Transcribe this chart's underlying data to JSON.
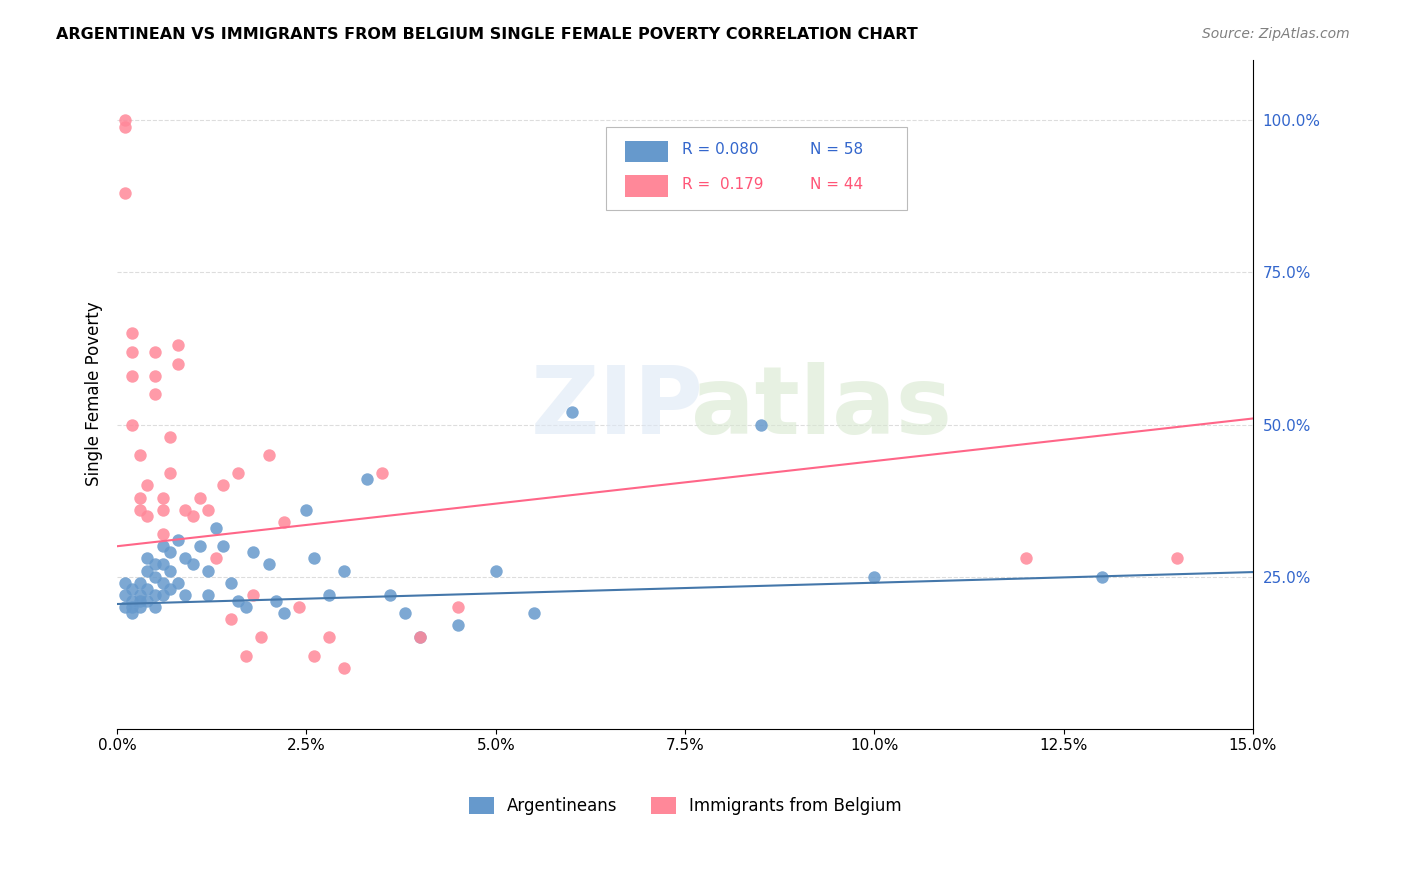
{
  "title": "ARGENTINEAN VS IMMIGRANTS FROM BELGIUM SINGLE FEMALE POVERTY CORRELATION CHART",
  "source": "Source: ZipAtlas.com",
  "ylabel": "Single Female Poverty",
  "right_yticks": [
    "100.0%",
    "75.0%",
    "50.0%",
    "25.0%"
  ],
  "right_ytick_vals": [
    1.0,
    0.75,
    0.5,
    0.25
  ],
  "color_blue": "#6699CC",
  "color_pink": "#FF8899",
  "color_line_blue": "#4477AA",
  "color_line_pink": "#FF6688",
  "color_label_blue": "#3366CC",
  "color_label_pink": "#FF5577",
  "argentineans_x": [
    0.001,
    0.001,
    0.001,
    0.002,
    0.002,
    0.002,
    0.002,
    0.003,
    0.003,
    0.003,
    0.003,
    0.004,
    0.004,
    0.004,
    0.004,
    0.005,
    0.005,
    0.005,
    0.005,
    0.006,
    0.006,
    0.006,
    0.006,
    0.007,
    0.007,
    0.007,
    0.008,
    0.008,
    0.009,
    0.009,
    0.01,
    0.011,
    0.012,
    0.012,
    0.013,
    0.014,
    0.015,
    0.016,
    0.017,
    0.018,
    0.02,
    0.021,
    0.022,
    0.025,
    0.026,
    0.028,
    0.03,
    0.033,
    0.036,
    0.038,
    0.04,
    0.045,
    0.05,
    0.055,
    0.06,
    0.085,
    0.1,
    0.13
  ],
  "argentineans_y": [
    0.22,
    0.2,
    0.24,
    0.21,
    0.19,
    0.23,
    0.2,
    0.22,
    0.24,
    0.21,
    0.2,
    0.28,
    0.26,
    0.23,
    0.21,
    0.27,
    0.25,
    0.22,
    0.2,
    0.3,
    0.27,
    0.24,
    0.22,
    0.29,
    0.26,
    0.23,
    0.31,
    0.24,
    0.28,
    0.22,
    0.27,
    0.3,
    0.26,
    0.22,
    0.33,
    0.3,
    0.24,
    0.21,
    0.2,
    0.29,
    0.27,
    0.21,
    0.19,
    0.36,
    0.28,
    0.22,
    0.26,
    0.41,
    0.22,
    0.19,
    0.15,
    0.17,
    0.26,
    0.19,
    0.52,
    0.5,
    0.25,
    0.25
  ],
  "belgium_x": [
    0.001,
    0.001,
    0.001,
    0.002,
    0.002,
    0.002,
    0.002,
    0.003,
    0.003,
    0.003,
    0.004,
    0.004,
    0.005,
    0.005,
    0.005,
    0.006,
    0.006,
    0.006,
    0.007,
    0.007,
    0.008,
    0.008,
    0.009,
    0.01,
    0.011,
    0.012,
    0.013,
    0.014,
    0.015,
    0.016,
    0.017,
    0.018,
    0.019,
    0.02,
    0.022,
    0.024,
    0.026,
    0.028,
    0.03,
    0.035,
    0.04,
    0.045,
    0.12,
    0.14
  ],
  "belgium_y": [
    1.0,
    0.99,
    0.88,
    0.65,
    0.62,
    0.58,
    0.5,
    0.45,
    0.38,
    0.36,
    0.4,
    0.35,
    0.62,
    0.58,
    0.55,
    0.38,
    0.36,
    0.32,
    0.48,
    0.42,
    0.63,
    0.6,
    0.36,
    0.35,
    0.38,
    0.36,
    0.28,
    0.4,
    0.18,
    0.42,
    0.12,
    0.22,
    0.15,
    0.45,
    0.34,
    0.2,
    0.12,
    0.15,
    0.1,
    0.42,
    0.15,
    0.2,
    0.28,
    0.28
  ],
  "xmin": 0.0,
  "xmax": 0.15,
  "ymin": 0.0,
  "ymax": 1.1,
  "blue_line_intercept": 0.205,
  "blue_line_slope": 0.35,
  "pink_line_intercept": 0.3,
  "pink_line_slope": 1.4
}
